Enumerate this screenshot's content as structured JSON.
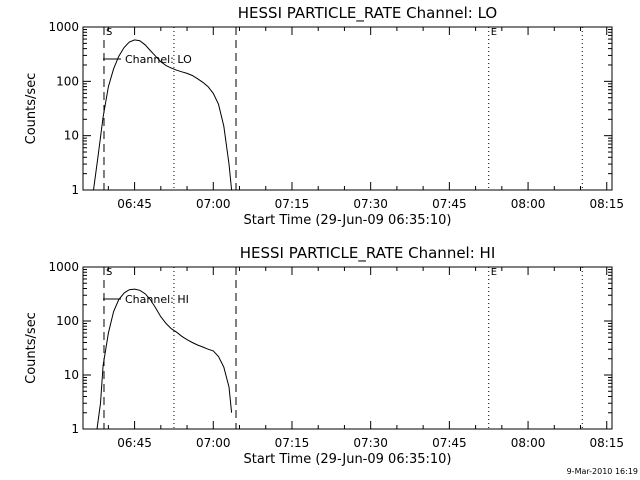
{
  "footer": {
    "timestamp": "9-Mar-2010 16:19"
  },
  "chart_data": [
    {
      "type": "line",
      "title": "HESSI PARTICLE_RATE Channel: LO",
      "xlabel": "Start Time (29-Jun-09 06:35:10)",
      "ylabel": "Counts/sec",
      "xlim": [
        "06:35:10",
        "08:16"
      ],
      "ylim": [
        1,
        1000
      ],
      "yscale": "log",
      "xticks": [
        "06:45",
        "07:00",
        "07:15",
        "07:30",
        "07:45",
        "08:00",
        "08:15"
      ],
      "yticks": [
        "1",
        "10",
        "100",
        "1000"
      ],
      "grid": false,
      "legend": "Channel: LO",
      "legend_position": "top-left",
      "markers": {
        "start_label": "S",
        "end_label": "E"
      },
      "vlines": [
        {
          "x": "06:39:10",
          "style": "dashed",
          "label": "S"
        },
        {
          "x": "06:52:30",
          "style": "dotted"
        },
        {
          "x": "07:04:20",
          "style": "dashed"
        },
        {
          "x": "07:52:30",
          "style": "dotted",
          "label": "E"
        },
        {
          "x": "08:10:20",
          "style": "dotted"
        }
      ],
      "series": [
        {
          "name": "Channel: LO",
          "x": [
            "06:37:10",
            "06:38:00",
            "06:39:00",
            "06:40:00",
            "06:41:00",
            "06:42:00",
            "06:43:00",
            "06:44:00",
            "06:45:00",
            "06:46:00",
            "06:47:00",
            "06:48:00",
            "06:49:00",
            "06:50:00",
            "06:51:00",
            "06:52:00",
            "06:53:00",
            "06:54:00",
            "06:55:00",
            "06:56:00",
            "06:57:00",
            "06:58:00",
            "06:59:00",
            "07:00:00",
            "07:01:00",
            "07:02:00",
            "07:03:00",
            "07:03:30"
          ],
          "y": [
            1,
            4,
            22,
            80,
            170,
            290,
            420,
            530,
            580,
            560,
            470,
            370,
            290,
            230,
            195,
            175,
            160,
            150,
            140,
            128,
            112,
            96,
            80,
            60,
            38,
            15,
            3,
            1
          ]
        }
      ]
    },
    {
      "type": "line",
      "title": "HESSI PARTICLE_RATE Channel: HI",
      "xlabel": "Start Time (29-Jun-09 06:35:10)",
      "ylabel": "Counts/sec",
      "xlim": [
        "06:35:10",
        "08:16"
      ],
      "ylim": [
        1,
        1000
      ],
      "yscale": "log",
      "xticks": [
        "06:45",
        "07:00",
        "07:15",
        "07:30",
        "07:45",
        "08:00",
        "08:15"
      ],
      "yticks": [
        "1",
        "10",
        "100",
        "1000"
      ],
      "grid": false,
      "legend": "Channel: HI",
      "legend_position": "top-left",
      "markers": {
        "start_label": "S",
        "end_label": "E"
      },
      "vlines": [
        {
          "x": "06:39:10",
          "style": "dashed",
          "label": "S"
        },
        {
          "x": "06:52:30",
          "style": "dotted"
        },
        {
          "x": "07:04:20",
          "style": "dashed"
        },
        {
          "x": "07:52:30",
          "style": "dotted",
          "label": "E"
        },
        {
          "x": "08:10:20",
          "style": "dotted"
        }
      ],
      "series": [
        {
          "name": "Channel: HI",
          "x": [
            "06:37:50",
            "06:38:30",
            "06:39:00",
            "06:40:00",
            "06:41:00",
            "06:42:00",
            "06:43:00",
            "06:44:00",
            "06:45:00",
            "06:46:00",
            "06:47:00",
            "06:48:00",
            "06:49:00",
            "06:50:00",
            "06:51:00",
            "06:52:00",
            "06:53:00",
            "06:54:00",
            "06:55:00",
            "06:56:00",
            "06:57:00",
            "06:58:00",
            "06:59:00",
            "07:00:00",
            "07:01:00",
            "07:02:00",
            "07:03:00",
            "07:03:30"
          ],
          "y": [
            1,
            3,
            15,
            60,
            150,
            250,
            330,
            380,
            390,
            370,
            320,
            250,
            175,
            120,
            90,
            72,
            62,
            52,
            45,
            40,
            36,
            33,
            30,
            28,
            22,
            14,
            6,
            2
          ]
        }
      ]
    }
  ]
}
